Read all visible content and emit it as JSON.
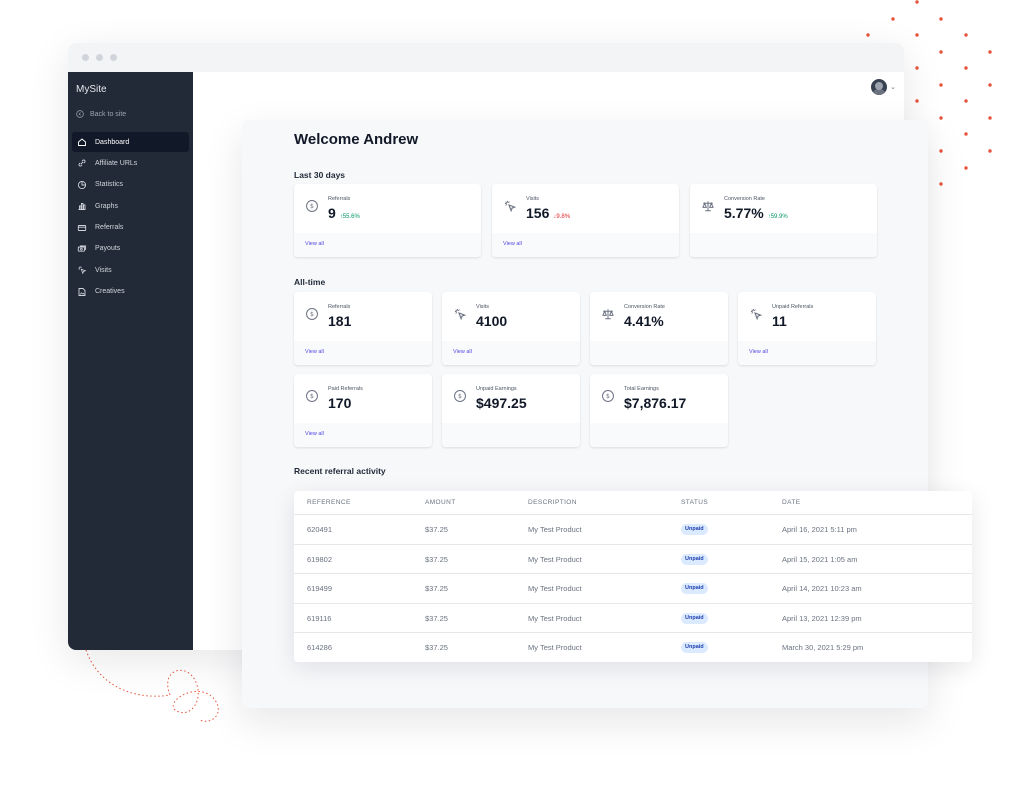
{
  "window": {
    "traffic_lights": [
      "close",
      "minimize",
      "maximize"
    ]
  },
  "sidebar": {
    "brand": "MySite",
    "back_label": "Back to site",
    "items": [
      {
        "label": "Dashboard",
        "icon": "home-icon",
        "active": true
      },
      {
        "label": "Affiliate URLs",
        "icon": "link-icon"
      },
      {
        "label": "Statistics",
        "icon": "pie-chart-icon"
      },
      {
        "label": "Graphs",
        "icon": "bar-chart-icon"
      },
      {
        "label": "Referrals",
        "icon": "credit-card-icon"
      },
      {
        "label": "Payouts",
        "icon": "cash-icon"
      },
      {
        "label": "Visits",
        "icon": "cursor-click-icon"
      },
      {
        "label": "Creatives",
        "icon": "document-image-icon"
      }
    ]
  },
  "header": {
    "avatar": "user-avatar",
    "menu_icon": "chevron-down-icon"
  },
  "main": {
    "welcome": "Welcome Andrew",
    "last30": {
      "label": "Last 30 days",
      "cards": [
        {
          "label": "Referrals",
          "value": "9",
          "delta": "55.6%",
          "trend": "up",
          "icon": "currency-icon",
          "link": "View all"
        },
        {
          "label": "Visits",
          "value": "156",
          "delta": "9.8%",
          "trend": "down",
          "icon": "cursor-click-icon",
          "link": "View all"
        },
        {
          "label": "Conversion Rate",
          "value": "5.77%",
          "delta": "59.9%",
          "trend": "up",
          "icon": "scale-icon",
          "link": ""
        }
      ]
    },
    "alltime": {
      "label": "All-time",
      "cards": [
        {
          "label": "Referrals",
          "value": "181",
          "icon": "currency-icon",
          "link": "View all"
        },
        {
          "label": "Visits",
          "value": "4100",
          "icon": "cursor-click-icon",
          "link": "View all"
        },
        {
          "label": "Conversion Rate",
          "value": "4.41%",
          "icon": "scale-icon",
          "link": ""
        },
        {
          "label": "Unpaid Referrals",
          "value": "11",
          "icon": "cursor-click-icon",
          "link": "View all"
        },
        {
          "label": "Paid Referrals",
          "value": "170",
          "icon": "currency-icon",
          "link": "View all"
        },
        {
          "label": "Unpaid Earnings",
          "value": "$497.25",
          "icon": "currency-icon",
          "link": ""
        },
        {
          "label": "Total Earnings",
          "value": "$7,876.17",
          "icon": "currency-icon",
          "link": ""
        }
      ]
    },
    "recent": {
      "label": "Recent referral activity",
      "columns": [
        "REFERENCE",
        "AMOUNT",
        "DESCRIPTION",
        "STATUS",
        "DATE"
      ],
      "rows": [
        {
          "reference": "620491",
          "amount": "$37.25",
          "description": "My Test Product",
          "status": "Unpaid",
          "date": "April 16, 2021 5:11 pm"
        },
        {
          "reference": "619802",
          "amount": "$37.25",
          "description": "My Test Product",
          "status": "Unpaid",
          "date": "April 15, 2021 1:05 am"
        },
        {
          "reference": "619499",
          "amount": "$37.25",
          "description": "My Test Product",
          "status": "Unpaid",
          "date": "April 14, 2021 10:23 am"
        },
        {
          "reference": "619116",
          "amount": "$37.25",
          "description": "My Test Product",
          "status": "Unpaid",
          "date": "April 13, 2021 12:39 pm"
        },
        {
          "reference": "614286",
          "amount": "$37.25",
          "description": "My Test Product",
          "status": "Unpaid",
          "date": "March 30, 2021 5:29 pm"
        }
      ]
    }
  },
  "colors": {
    "accent": "#4f46e5",
    "sidebar": "#222a38",
    "positive": "#059669",
    "negative": "#dc2626",
    "badge_bg": "#dbeafe",
    "decor": "#e8543b"
  }
}
